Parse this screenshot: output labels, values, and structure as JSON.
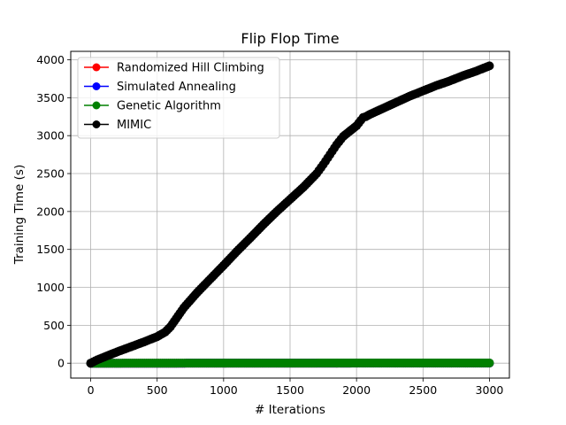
{
  "chart_data": {
    "type": "line",
    "title": "Flip Flop Time",
    "xlabel": "# Iterations",
    "ylabel": "Training Time (s)",
    "xlim": [
      -150,
      3150
    ],
    "ylim": [
      -196,
      4111
    ],
    "xticks": [
      0,
      500,
      1000,
      1500,
      2000,
      2500,
      3000
    ],
    "yticks": [
      0,
      500,
      1000,
      1500,
      2000,
      2500,
      3000,
      3500,
      4000
    ],
    "grid": true,
    "legend_position": "top-left",
    "marker": "circle",
    "series": [
      {
        "name": "Randomized Hill Climbing",
        "color": "#ff0000",
        "x": [
          0,
          3000
        ],
        "values": [
          0,
          1
        ]
      },
      {
        "name": "Simulated Annealing",
        "color": "#0000ff",
        "x": [
          0,
          3000
        ],
        "values": [
          0,
          1
        ]
      },
      {
        "name": "Genetic Algorithm",
        "color": "#008000",
        "x": [
          0,
          3000
        ],
        "values": [
          0,
          3
        ]
      },
      {
        "name": "MIMIC",
        "color": "#000000",
        "x": [
          0,
          50,
          100,
          200,
          300,
          400,
          500,
          560,
          600,
          700,
          800,
          900,
          1000,
          1100,
          1200,
          1300,
          1400,
          1500,
          1600,
          1700,
          1750,
          1800,
          1850,
          1900,
          2000,
          2050,
          2070,
          2100,
          2200,
          2300,
          2400,
          2500,
          2600,
          2700,
          2800,
          2900,
          3000
        ],
        "values": [
          0,
          45,
          80,
          150,
          215,
          280,
          350,
          410,
          480,
          730,
          930,
          1110,
          1290,
          1475,
          1650,
          1830,
          2000,
          2160,
          2320,
          2500,
          2620,
          2750,
          2880,
          2990,
          3130,
          3240,
          3250,
          3280,
          3360,
          3440,
          3520,
          3590,
          3660,
          3720,
          3790,
          3850,
          3920
        ]
      }
    ]
  }
}
